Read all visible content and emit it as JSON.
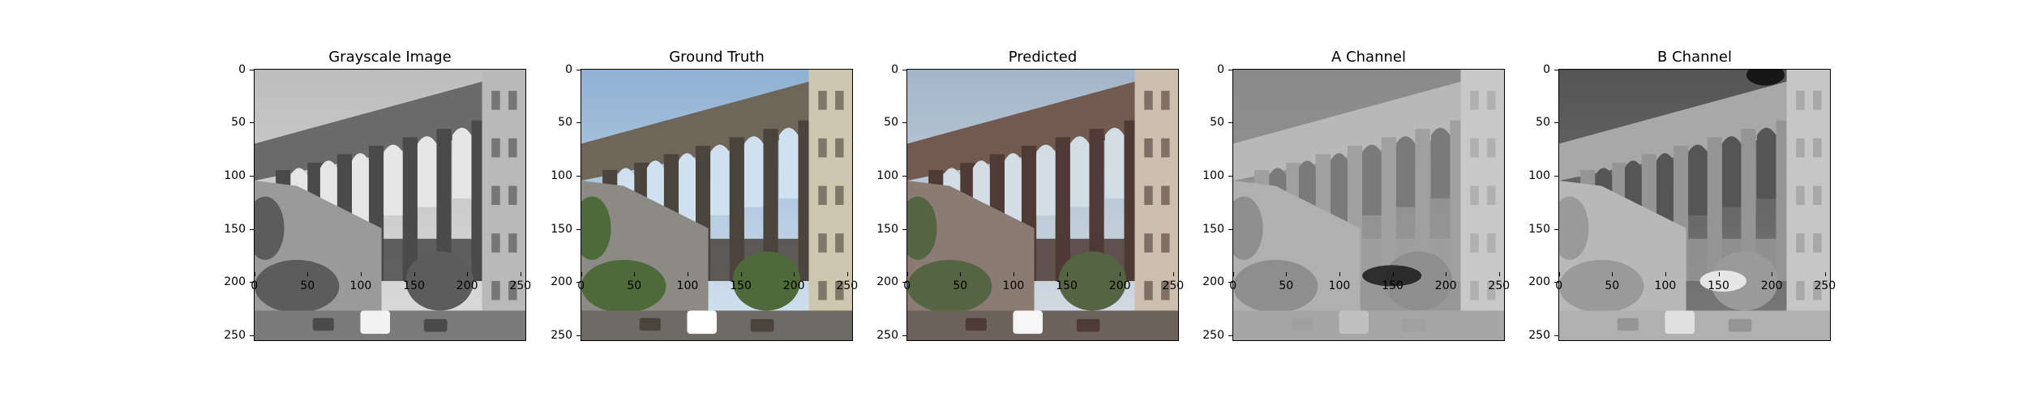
{
  "figure": {
    "panels": [
      {
        "title": "Grayscale Image",
        "style": "gray"
      },
      {
        "title": "Ground Truth",
        "style": "truth"
      },
      {
        "title": "Predicted",
        "style": "pred"
      },
      {
        "title": "A Channel",
        "style": "a"
      },
      {
        "title": "B Channel",
        "style": "b"
      }
    ],
    "axes": {
      "y_ticks": [
        "0",
        "50",
        "100",
        "150",
        "200",
        "250"
      ],
      "x_ticks": [
        "0",
        "50",
        "100",
        "150",
        "200",
        "250"
      ]
    }
  },
  "colors": {
    "axis": "#000000",
    "background": "#ffffff"
  }
}
